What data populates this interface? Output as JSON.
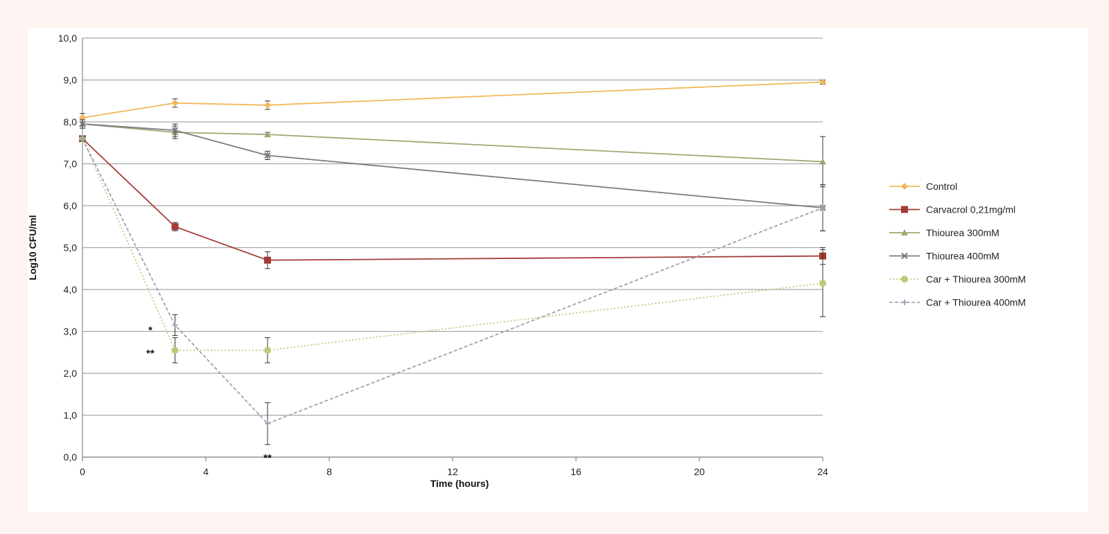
{
  "chart_data": {
    "type": "line",
    "xlabel": "Time  (hours)",
    "ylabel": "Log10 CFU/ml",
    "xlim": [
      0,
      24
    ],
    "ylim": [
      0,
      10
    ],
    "x_ticks": [
      0,
      4,
      8,
      12,
      16,
      20,
      24
    ],
    "x_tick_labels": [
      "0",
      "4",
      "8",
      "12",
      "16",
      "20",
      "24"
    ],
    "y_ticks": [
      0,
      1,
      2,
      3,
      4,
      5,
      6,
      7,
      8,
      9,
      10
    ],
    "y_tick_labels": [
      "0,0",
      "1,0",
      "2,0",
      "3,0",
      "4,0",
      "5,0",
      "6,0",
      "7,0",
      "8,0",
      "9,0",
      "10,0"
    ],
    "grid": "horizontal",
    "legend_position": "right",
    "x": [
      0,
      3,
      6,
      24
    ],
    "series": [
      {
        "name": "Control",
        "color": "#f0b85a",
        "marker": "diamond",
        "dash": "solid",
        "values": [
          8.1,
          8.45,
          8.4,
          8.95
        ],
        "errors": [
          0.1,
          0.1,
          0.1,
          0.05
        ]
      },
      {
        "name": "Carvacrol 0,21mg/ml",
        "color": "#a33a36",
        "marker": "square",
        "dash": "solid",
        "values": [
          7.6,
          5.5,
          4.7,
          4.8
        ],
        "errors": [
          0.05,
          0.1,
          0.2,
          0.2
        ]
      },
      {
        "name": "Thiourea 300mM",
        "color": "#9aaa72",
        "marker": "triangle",
        "dash": "solid",
        "values": [
          7.95,
          7.75,
          7.7,
          7.05
        ],
        "errors": [
          0.1,
          0.15,
          0.05,
          0.6
        ]
      },
      {
        "name": "Thiourea 400mM",
        "color": "#7a7a82",
        "marker": "x",
        "dash": "solid",
        "values": [
          7.95,
          7.8,
          7.2,
          5.95
        ],
        "errors": [
          0.1,
          0.15,
          0.1,
          0.55
        ]
      },
      {
        "name": "Car + Thiourea 300mM",
        "color": "#b8cc7a",
        "marker": "circle",
        "dash": "dotted",
        "values": [
          7.6,
          2.55,
          2.55,
          4.15
        ],
        "errors": [
          0.05,
          0.3,
          0.3,
          0.8
        ]
      },
      {
        "name": "Car + Thiourea 400mM",
        "color": "#a0a0b0",
        "marker": "plus",
        "dash": "dashed",
        "values": [
          7.6,
          3.15,
          0.8,
          5.95
        ],
        "errors": [
          0.05,
          0.25,
          0.5,
          0.55
        ]
      }
    ],
    "annotations": [
      {
        "text": "*",
        "x": 2.2,
        "y": 3.05
      },
      {
        "text": "**",
        "x": 2.2,
        "y": 2.5
      },
      {
        "text": "**",
        "x": 6.0,
        "y": 0.0
      }
    ]
  }
}
